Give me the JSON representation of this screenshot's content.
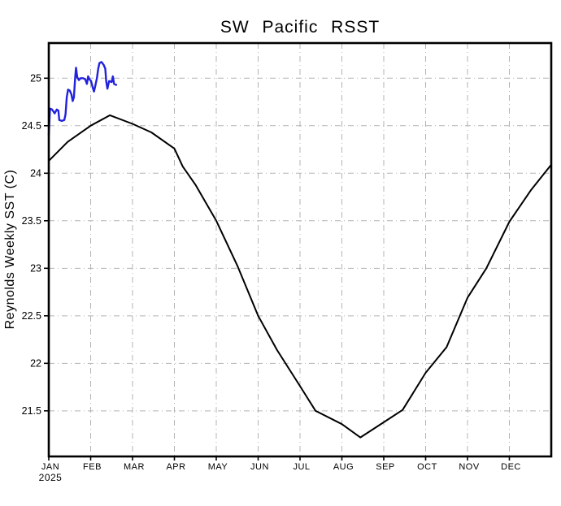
{
  "figure": {
    "background": "#ffffff",
    "frame_color": "#000000"
  },
  "chart_data": {
    "type": "line",
    "title": "SW Pacific RSST",
    "ylabel": "Reynolds Weekly SST (C)",
    "legend": "none",
    "x_axis": {
      "unit": "month",
      "tick_labels": [
        "JAN",
        "FEB",
        "MAR",
        "APR",
        "MAY",
        "JUN",
        "JUL",
        "AUG",
        "SEP",
        "OCT",
        "NOV",
        "DEC"
      ],
      "year_label": "2025"
    },
    "y_axis": {
      "tick_labels": [
        "25",
        "24.5",
        "24",
        "23.5",
        "23",
        "22.5",
        "22",
        "21.5"
      ],
      "tick_values": [
        25,
        24.5,
        24,
        23.5,
        23,
        22.5,
        22,
        21.5
      ],
      "range": [
        21.02,
        25.37
      ]
    },
    "grid": {
      "show": true,
      "color": "#b3b3b3",
      "style": "dash-dot"
    },
    "series": [
      {
        "name": "climatology-black",
        "color": "#000000",
        "width": 2,
        "x_month": [
          0,
          0.45,
          1.0,
          1.46,
          2.0,
          2.45,
          3.0,
          3.2,
          3.5,
          4.0,
          4.5,
          5.0,
          5.45,
          6.0,
          6.37,
          7.0,
          7.44,
          8.0,
          8.45,
          9.0,
          9.5,
          10.0,
          10.45,
          11.0,
          11.51,
          12.0
        ],
        "values": [
          24.13,
          24.33,
          24.5,
          24.61,
          24.52,
          24.43,
          24.26,
          24.07,
          23.88,
          23.5,
          23.03,
          22.5,
          22.14,
          21.76,
          21.5,
          21.36,
          21.22,
          21.38,
          21.51,
          21.9,
          22.17,
          22.69,
          23.0,
          23.49,
          23.82,
          24.09
        ]
      },
      {
        "name": "weekly-sst-2025-blue",
        "color": "#2222dd",
        "width": 2.4,
        "x_month": [
          0.0,
          0.03,
          0.08,
          0.14,
          0.19,
          0.23,
          0.25,
          0.31,
          0.37,
          0.4,
          0.43,
          0.46,
          0.5,
          0.54,
          0.57,
          0.6,
          0.63,
          0.65,
          0.68,
          0.72,
          0.76,
          0.82,
          0.87,
          0.91,
          0.94,
          0.97,
          1.01,
          1.05,
          1.08,
          1.11,
          1.15,
          1.18,
          1.21,
          1.26,
          1.31,
          1.35,
          1.37,
          1.4,
          1.44,
          1.5,
          1.53,
          1.56,
          1.61
        ],
        "values": [
          24.4,
          24.68,
          24.67,
          24.63,
          24.67,
          24.66,
          24.56,
          24.55,
          24.56,
          24.62,
          24.8,
          24.88,
          24.87,
          24.83,
          24.76,
          24.8,
          25.0,
          25.11,
          25.01,
          24.98,
          25.0,
          25.0,
          24.99,
          24.94,
          25.02,
          24.99,
          24.97,
          24.9,
          24.86,
          24.92,
          25.0,
          25.1,
          25.16,
          25.17,
          25.14,
          25.1,
          24.97,
          24.89,
          24.97,
          24.96,
          25.02,
          24.94,
          24.93
        ]
      }
    ]
  }
}
